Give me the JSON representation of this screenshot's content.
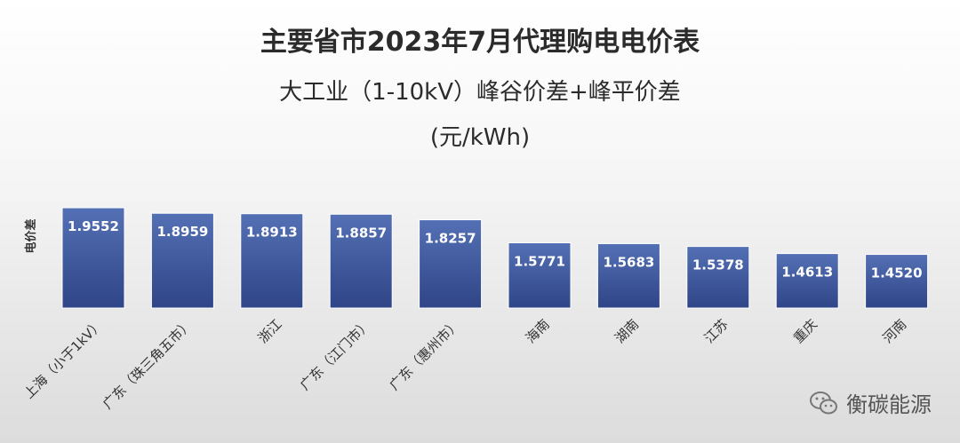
{
  "chart_data": {
    "type": "bar",
    "title": "主要省市2023年7月代理购电电价表",
    "subtitle": "大工业（1-10kV）峰谷价差+峰平价差",
    "unit": "(元/kWh)",
    "ylabel": "电价差",
    "categories": [
      "上海（小于1kV）",
      "广东（珠三角五市）",
      "浙江",
      "广东（江门市）",
      "广东（惠州市）",
      "海南",
      "湖南",
      "江苏",
      "重庆",
      "河南"
    ],
    "values": [
      1.9552,
      1.8959,
      1.8913,
      1.8857,
      1.8257,
      1.5771,
      1.5683,
      1.5378,
      1.4613,
      1.452
    ],
    "value_labels": [
      "1.9552",
      "1.8959",
      "1.8913",
      "1.8857",
      "1.8257",
      "1.5771",
      "1.5683",
      "1.5378",
      "1.4613",
      "1.4520"
    ],
    "ylim": [
      0,
      2.0
    ],
    "grid": false,
    "legend": "none",
    "colors": {
      "bar_top": "#5470b4",
      "bar_bottom": "#2f4587",
      "label": "#ffffff",
      "tick": "#333333"
    }
  },
  "watermark": {
    "text": "衡碳能源",
    "icon": "wechat-icon"
  }
}
